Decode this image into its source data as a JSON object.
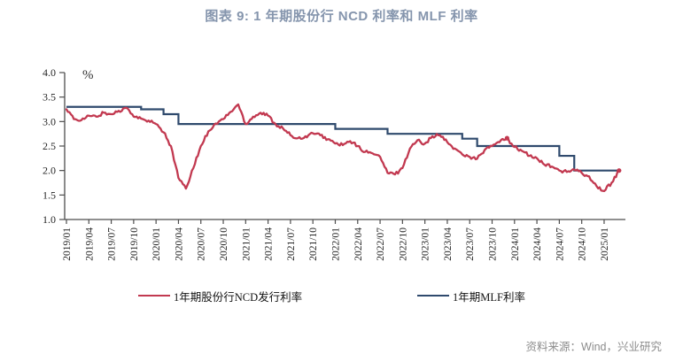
{
  "header": {
    "title": "图表 9: 1 年期股份行 NCD 利率和 MLF 利率"
  },
  "source_note": "资料来源：Wind，兴业研究",
  "colors": {
    "ncd_red": "#C23950",
    "mlf_navy": "#2F4A6D",
    "title_blue": "#8595AD",
    "axis_gray": "#4d4d4d",
    "tick_text": "#262626",
    "source_gray": "#8c8c8c"
  },
  "chart_data": {
    "type": "line",
    "title": "图表 9: 1 年期股份行 NCD 利率和 MLF 利率",
    "unit_label": "%",
    "xlabel": "",
    "ylabel": "%",
    "ylim": [
      1.0,
      4.0
    ],
    "y_ticks": [
      1.0,
      1.5,
      2.0,
      2.5,
      3.0,
      3.5,
      4.0
    ],
    "grid": false,
    "legend_position": "bottom",
    "x_start": "2019/01",
    "x_frequency": "monthly",
    "x_tick_labels": [
      "2019/01",
      "2019/04",
      "2019/07",
      "2019/10",
      "2020/01",
      "2020/04",
      "2020/07",
      "2020/10",
      "2021/01",
      "2021/04",
      "2021/07",
      "2021/10",
      "2022/01",
      "2022/04",
      "2022/07",
      "2022/10",
      "2023/01",
      "2023/04",
      "2023/07",
      "2023/10",
      "2024/01",
      "2024/04",
      "2024/07",
      "2024/10",
      "2025/01"
    ],
    "series": [
      {
        "name": "1年期股份行NCD发行利率",
        "color": "#C23950",
        "style": "noisy-line",
        "values": [
          3.25,
          3.05,
          3.03,
          3.12,
          3.1,
          3.18,
          3.15,
          3.22,
          3.28,
          3.1,
          3.06,
          3.02,
          2.95,
          2.78,
          2.5,
          1.85,
          1.63,
          2.05,
          2.5,
          2.8,
          2.96,
          3.05,
          3.2,
          3.35,
          2.95,
          3.1,
          3.18,
          3.12,
          2.95,
          2.86,
          2.72,
          2.66,
          2.7,
          2.76,
          2.72,
          2.64,
          2.55,
          2.52,
          2.6,
          2.5,
          2.38,
          2.35,
          2.28,
          1.95,
          1.92,
          2.05,
          2.45,
          2.62,
          2.55,
          2.7,
          2.72,
          2.58,
          2.45,
          2.33,
          2.28,
          2.24,
          2.42,
          2.5,
          2.58,
          2.66,
          2.48,
          2.4,
          2.3,
          2.25,
          2.12,
          2.08,
          2.0,
          1.97,
          2.02,
          1.95,
          1.88,
          1.68,
          1.58,
          1.75,
          2.0
        ]
      },
      {
        "name": "1年期MLF利率",
        "color": "#2F4A6D",
        "style": "step",
        "values": [
          3.3,
          3.3,
          3.3,
          3.3,
          3.3,
          3.3,
          3.3,
          3.3,
          3.3,
          3.3,
          3.25,
          3.25,
          3.25,
          3.15,
          3.15,
          2.95,
          2.95,
          2.95,
          2.95,
          2.95,
          2.95,
          2.95,
          2.95,
          2.95,
          2.95,
          2.95,
          2.95,
          2.95,
          2.95,
          2.95,
          2.95,
          2.95,
          2.95,
          2.95,
          2.95,
          2.95,
          2.85,
          2.85,
          2.85,
          2.85,
          2.85,
          2.85,
          2.85,
          2.75,
          2.75,
          2.75,
          2.75,
          2.75,
          2.75,
          2.75,
          2.75,
          2.75,
          2.75,
          2.65,
          2.65,
          2.5,
          2.5,
          2.5,
          2.5,
          2.5,
          2.5,
          2.5,
          2.5,
          2.5,
          2.5,
          2.5,
          2.3,
          2.3,
          2.0,
          2.0,
          2.0,
          2.0,
          2.0,
          2.0,
          2.0
        ]
      }
    ],
    "point_markers": [
      {
        "month": "2023/12",
        "value": 2.66
      },
      {
        "month": "2025/03",
        "value": 2.0
      }
    ]
  }
}
